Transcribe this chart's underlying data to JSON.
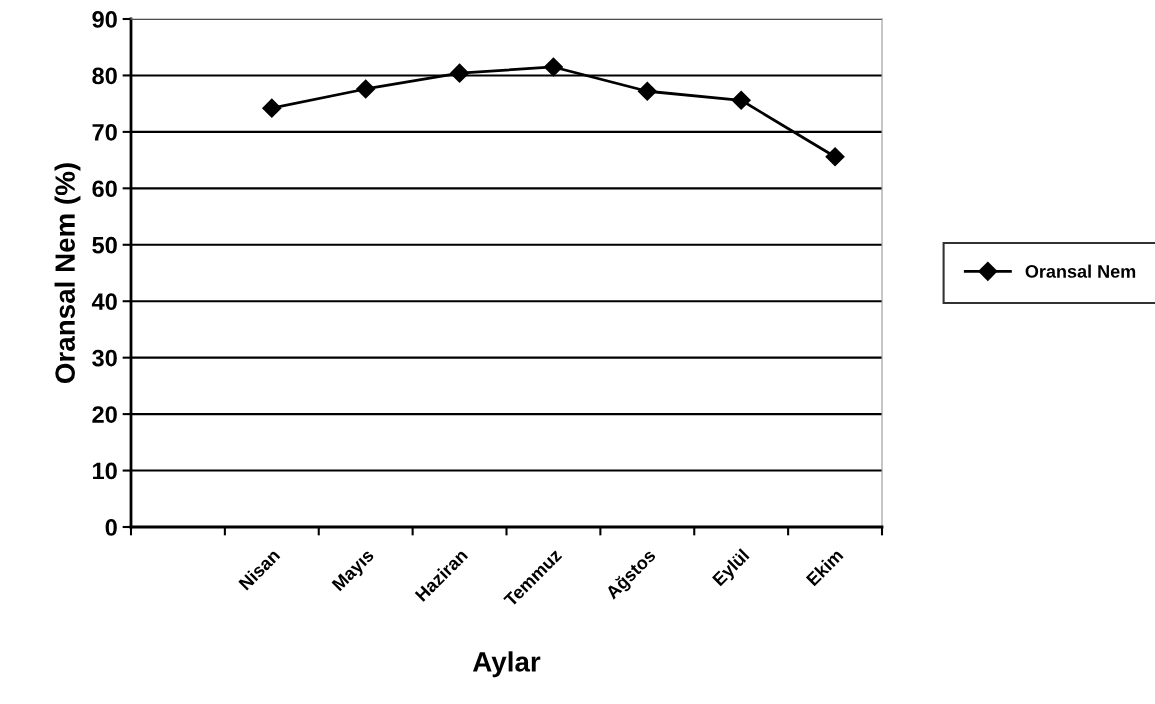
{
  "chart_data": {
    "type": "line",
    "xlabel": "Aylar",
    "ylabel": "Oransal Nem (%)",
    "categories": [
      null,
      "Nisan",
      "Mayıs",
      "Haziran",
      "Temmuz",
      "Ağstos",
      "Eylül",
      "Ekim"
    ],
    "series": [
      {
        "name": "Oransal Nem",
        "color": "#000000",
        "values": [
          null,
          74.2,
          77.6,
          80.4,
          81.5,
          77.2,
          75.6,
          65.6
        ]
      }
    ],
    "ylim": [
      0,
      90
    ],
    "yticks": [
      0,
      10,
      20,
      30,
      40,
      50,
      60,
      70,
      80,
      90
    ],
    "grid": "y",
    "legend": "right",
    "marker": "diamond",
    "line_style": "solid"
  }
}
